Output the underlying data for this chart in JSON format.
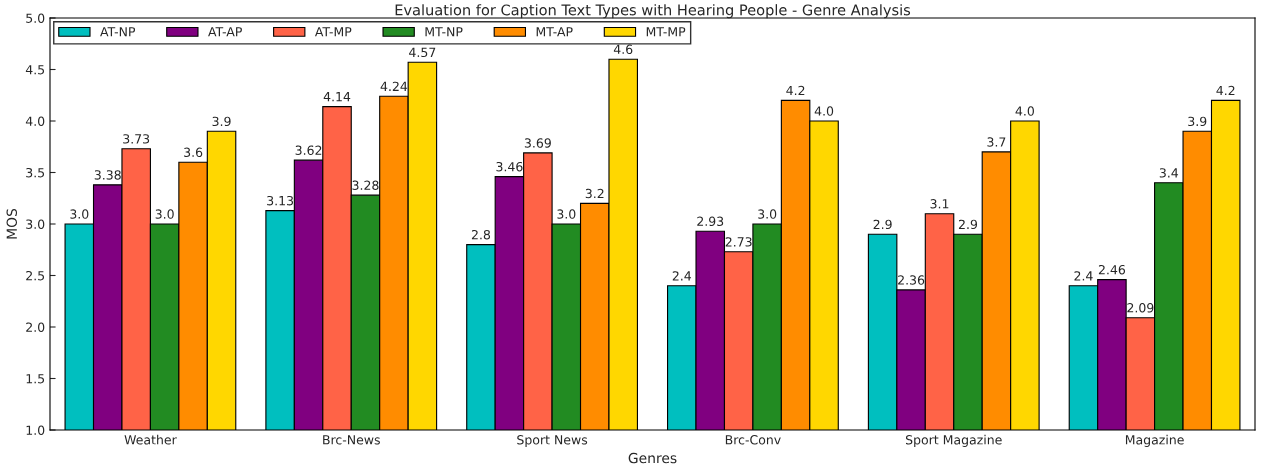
{
  "chart_data": {
    "type": "bar",
    "title": "Evaluation for Caption Text Types with Hearing People - Genre Analysis",
    "xlabel": "Genres",
    "ylabel": "MOS",
    "categories": [
      "Weather",
      "Brc-News",
      "Sport News",
      "Brc-Conv",
      "Sport Magazine",
      "Magazine"
    ],
    "series": [
      {
        "name": "AT-NP",
        "color": "#00bfbf",
        "values": [
          3.0,
          3.13,
          2.8,
          2.4,
          2.9,
          2.4
        ],
        "value_labels": [
          "3.0",
          "3.13",
          "2.8",
          "2.4",
          "2.9",
          "2.4"
        ]
      },
      {
        "name": "AT-AP",
        "color": "#800080",
        "values": [
          3.38,
          3.62,
          3.46,
          2.93,
          2.36,
          2.46
        ],
        "value_labels": [
          "3.38",
          "3.62",
          "3.46",
          "2.93",
          "2.36",
          "2.46"
        ]
      },
      {
        "name": "AT-MP",
        "color": "#ff6347",
        "values": [
          3.73,
          4.14,
          3.69,
          2.73,
          3.1,
          2.09
        ],
        "value_labels": [
          "3.73",
          "4.14",
          "3.69",
          "2.73",
          "3.1",
          "2.09"
        ]
      },
      {
        "name": "MT-NP",
        "color": "#228b22",
        "values": [
          3.0,
          3.28,
          3.0,
          3.0,
          2.9,
          3.4
        ],
        "value_labels": [
          "3.0",
          "3.28",
          "3.0",
          "3.0",
          "2.9",
          "3.4"
        ]
      },
      {
        "name": "MT-AP",
        "color": "#ff8c00",
        "values": [
          3.6,
          4.24,
          3.2,
          4.2,
          3.7,
          3.9
        ],
        "value_labels": [
          "3.6",
          "4.24",
          "3.2",
          "4.2",
          "3.7",
          "3.9"
        ]
      },
      {
        "name": "MT-MP",
        "color": "#ffd700",
        "values": [
          3.9,
          4.57,
          4.6,
          4.0,
          4.0,
          4.2
        ],
        "value_labels": [
          "3.9",
          "4.57",
          "4.6",
          "4.0",
          "4.0",
          "4.2"
        ]
      }
    ],
    "ylim": [
      1.0,
      5.0
    ],
    "yticks": [
      {
        "value": 1.0,
        "label": "1.0"
      },
      {
        "value": 1.5,
        "label": "1.5"
      },
      {
        "value": 2.0,
        "label": "2.0"
      },
      {
        "value": 2.5,
        "label": "2.5"
      },
      {
        "value": 3.0,
        "label": "3.0"
      },
      {
        "value": 3.5,
        "label": "3.5"
      },
      {
        "value": 4.0,
        "label": "4.0"
      },
      {
        "value": 4.5,
        "label": "4.5"
      },
      {
        "value": 5.0,
        "label": "5.0"
      }
    ],
    "grid": false,
    "legend": "top left"
  }
}
